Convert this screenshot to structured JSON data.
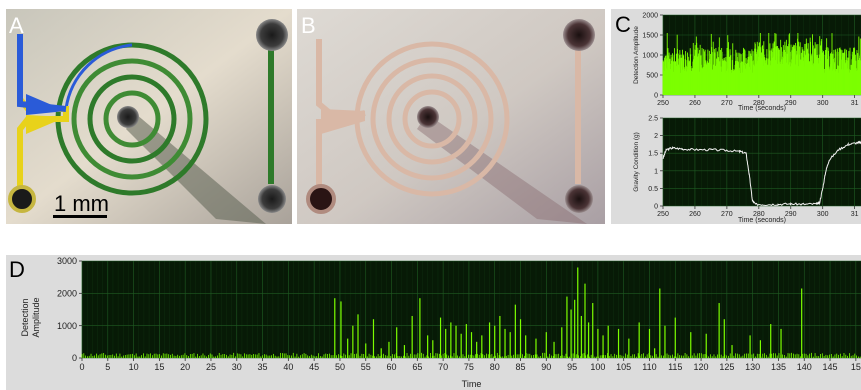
{
  "panels": {
    "a": {
      "label": "A",
      "scale_bar": "1 mm"
    },
    "b": {
      "label": "B"
    },
    "c": {
      "label": "C"
    },
    "d": {
      "label": "D"
    }
  },
  "colors": {
    "signal_green": "#7cff00",
    "plot_background": "#071a06",
    "grid": "#1f5a22",
    "trace_white": "#f2f2f2",
    "frame_grey": "#d8d8d8",
    "channel_blue": "#2a5bd8",
    "channel_yellow": "#e8d21a",
    "channel_green": "#2e7a2a",
    "channel_pale": "#d9b8a6"
  },
  "chart_data": [
    {
      "id": "c-top",
      "type": "bar",
      "xlabel": "Time (seconds)",
      "ylabel": "Detection Amplitude",
      "xlim": [
        250,
        312
      ],
      "ylim": [
        0,
        2000
      ],
      "xticks": [
        "250",
        "260",
        "270",
        "280",
        "290",
        "300",
        "31"
      ],
      "yticks": [
        "0",
        "500",
        "1000",
        "1500",
        "2000"
      ],
      "grid": true,
      "description_of_values": "dense noisy amplitude bursts mostly 600-1300, peaking near 1500"
    },
    {
      "id": "c-bottom",
      "type": "line",
      "xlabel": "Time (seconds)",
      "ylabel": "Gravity Condition (g)",
      "xlim": [
        250,
        312
      ],
      "ylim": [
        0,
        2.5
      ],
      "xticks": [
        "250",
        "260",
        "270",
        "280",
        "290",
        "300",
        "31"
      ],
      "yticks": [
        "0",
        "0.5",
        "1",
        "1.5",
        "2",
        "2.5"
      ],
      "grid": true,
      "series": [
        {
          "x": [
            250,
            251,
            253,
            256,
            260,
            265,
            270,
            274,
            276,
            277,
            278,
            279,
            282,
            286,
            290,
            294,
            298,
            299,
            300,
            301,
            302,
            305,
            308,
            311,
            312
          ],
          "y": [
            1.35,
            1.6,
            1.65,
            1.62,
            1.6,
            1.6,
            1.58,
            1.55,
            1.5,
            0.9,
            0.15,
            0.05,
            0.04,
            0.05,
            0.06,
            0.05,
            0.06,
            0.08,
            0.5,
            1.0,
            1.3,
            1.6,
            1.75,
            1.8,
            1.8
          ]
        }
      ]
    },
    {
      "id": "d",
      "type": "bar",
      "xlabel": "Time",
      "ylabel": "Detection Amplitude",
      "xlim": [
        0,
        151
      ],
      "ylim": [
        0,
        3000
      ],
      "xticks": [
        "0",
        "5",
        "10",
        "15",
        "20",
        "25",
        "30",
        "35",
        "40",
        "45",
        "50",
        "55",
        "60",
        "65",
        "70",
        "75",
        "80",
        "85",
        "90",
        "95",
        "100",
        "105",
        "110",
        "115",
        "120",
        "125",
        "130",
        "135",
        "140",
        "145",
        "15"
      ],
      "yticks": [
        "0",
        "1000",
        "2000",
        "3000"
      ],
      "grid": true,
      "spikes": [
        {
          "x": 49.0,
          "y": 1850
        },
        {
          "x": 50.2,
          "y": 1750
        },
        {
          "x": 51.5,
          "y": 600
        },
        {
          "x": 52.5,
          "y": 1000
        },
        {
          "x": 53.5,
          "y": 1350
        },
        {
          "x": 55.0,
          "y": 450
        },
        {
          "x": 56.5,
          "y": 1200
        },
        {
          "x": 58.0,
          "y": 300
        },
        {
          "x": 59.5,
          "y": 500
        },
        {
          "x": 61.0,
          "y": 950
        },
        {
          "x": 62.5,
          "y": 400
        },
        {
          "x": 64.0,
          "y": 1300
        },
        {
          "x": 65.5,
          "y": 1850
        },
        {
          "x": 67.0,
          "y": 700
        },
        {
          "x": 68.0,
          "y": 550
        },
        {
          "x": 69.5,
          "y": 1250
        },
        {
          "x": 70.5,
          "y": 900
        },
        {
          "x": 71.5,
          "y": 1100
        },
        {
          "x": 72.5,
          "y": 1000
        },
        {
          "x": 73.5,
          "y": 750
        },
        {
          "x": 74.5,
          "y": 1050
        },
        {
          "x": 75.5,
          "y": 800
        },
        {
          "x": 76.5,
          "y": 500
        },
        {
          "x": 77.5,
          "y": 700
        },
        {
          "x": 79.0,
          "y": 1100
        },
        {
          "x": 80.0,
          "y": 1000
        },
        {
          "x": 81.0,
          "y": 1300
        },
        {
          "x": 82.0,
          "y": 900
        },
        {
          "x": 83.0,
          "y": 800
        },
        {
          "x": 84.0,
          "y": 1650
        },
        {
          "x": 85.0,
          "y": 1200
        },
        {
          "x": 86.0,
          "y": 700
        },
        {
          "x": 88.0,
          "y": 600
        },
        {
          "x": 90.0,
          "y": 800
        },
        {
          "x": 91.5,
          "y": 500
        },
        {
          "x": 93.0,
          "y": 950
        },
        {
          "x": 94.0,
          "y": 1900
        },
        {
          "x": 94.8,
          "y": 1500
        },
        {
          "x": 95.5,
          "y": 1800
        },
        {
          "x": 96.1,
          "y": 2800
        },
        {
          "x": 96.8,
          "y": 1300
        },
        {
          "x": 97.5,
          "y": 2300
        },
        {
          "x": 98.2,
          "y": 1100
        },
        {
          "x": 99.0,
          "y": 1700
        },
        {
          "x": 100.0,
          "y": 900
        },
        {
          "x": 101.0,
          "y": 700
        },
        {
          "x": 102.0,
          "y": 1000
        },
        {
          "x": 104.0,
          "y": 900
        },
        {
          "x": 106.0,
          "y": 600
        },
        {
          "x": 108.0,
          "y": 1100
        },
        {
          "x": 110.0,
          "y": 900
        },
        {
          "x": 111.0,
          "y": 300
        },
        {
          "x": 112.0,
          "y": 2150
        },
        {
          "x": 113.0,
          "y": 1000
        },
        {
          "x": 115.0,
          "y": 1250
        },
        {
          "x": 118.0,
          "y": 800
        },
        {
          "x": 121.0,
          "y": 750
        },
        {
          "x": 123.5,
          "y": 1700
        },
        {
          "x": 124.5,
          "y": 1200
        },
        {
          "x": 126.0,
          "y": 400
        },
        {
          "x": 129.5,
          "y": 700
        },
        {
          "x": 131.5,
          "y": 550
        },
        {
          "x": 133.5,
          "y": 1050
        },
        {
          "x": 135.5,
          "y": 900
        },
        {
          "x": 139.5,
          "y": 2150
        }
      ]
    }
  ]
}
